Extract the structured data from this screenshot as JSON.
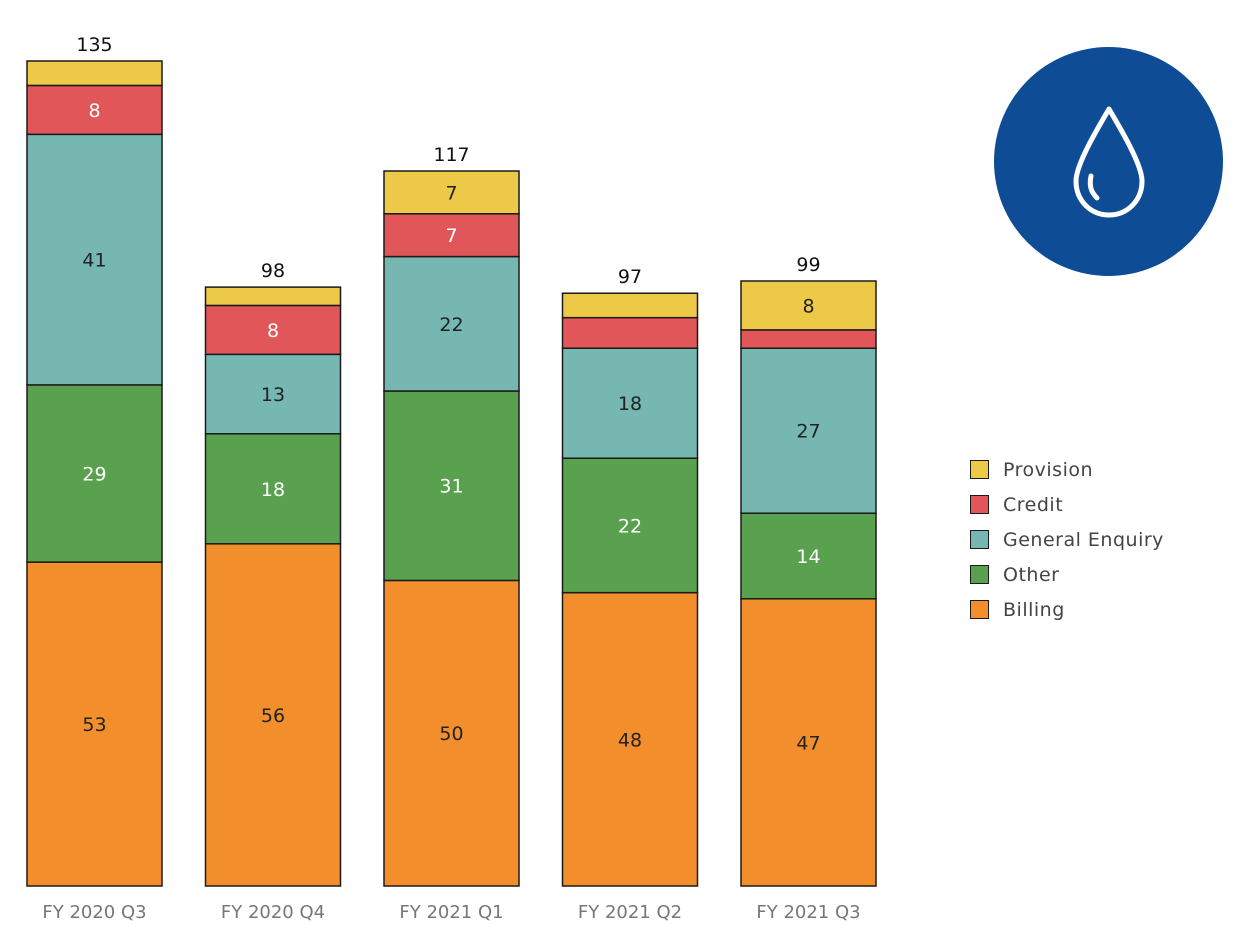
{
  "chart_data": {
    "type": "bar",
    "stacked": true,
    "categories": [
      "FY 2020 Q3",
      "FY 2020 Q4",
      "FY 2021 Q1",
      "FY 2021 Q2",
      "FY 2021 Q3"
    ],
    "totals": [
      135,
      98,
      117,
      97,
      99
    ],
    "total_labels": [
      "135",
      "98",
      "117",
      "97",
      "99"
    ],
    "series": [
      {
        "name": "Billing",
        "color": "#F28E2B",
        "values": [
          53,
          56,
          50,
          48,
          47
        ],
        "labels": [
          "53",
          "56",
          "50",
          "48",
          "47"
        ]
      },
      {
        "name": "Other",
        "color": "#59A14F",
        "values": [
          29,
          18,
          31,
          22,
          14
        ],
        "labels": [
          "29",
          "18",
          "31",
          "22",
          "14"
        ]
      },
      {
        "name": "General Enquiry",
        "color": "#76B7B2",
        "values": [
          41,
          13,
          22,
          18,
          27
        ],
        "labels": [
          "41",
          "13",
          "22",
          "18",
          "27"
        ]
      },
      {
        "name": "Credit",
        "color": "#E15759",
        "values": [
          8,
          8,
          7,
          5,
          3
        ],
        "labels": [
          "8",
          "8",
          "7",
          "",
          ""
        ]
      },
      {
        "name": "Provision",
        "color": "#EDC948",
        "values": [
          4,
          3,
          7,
          4,
          8
        ],
        "labels": [
          "",
          "",
          "7",
          "",
          "8"
        ]
      }
    ],
    "legend": [
      "Provision",
      "Credit",
      "General Enquiry",
      "Other",
      "Billing"
    ],
    "legend_position": "right",
    "title": "",
    "xlabel": "",
    "ylabel": "",
    "ylim": [
      0,
      135
    ],
    "grid": false
  },
  "logo": {
    "icon": "water-drop-icon",
    "background_color": "#0F4C96",
    "icon_color": "#FFFFFF"
  }
}
